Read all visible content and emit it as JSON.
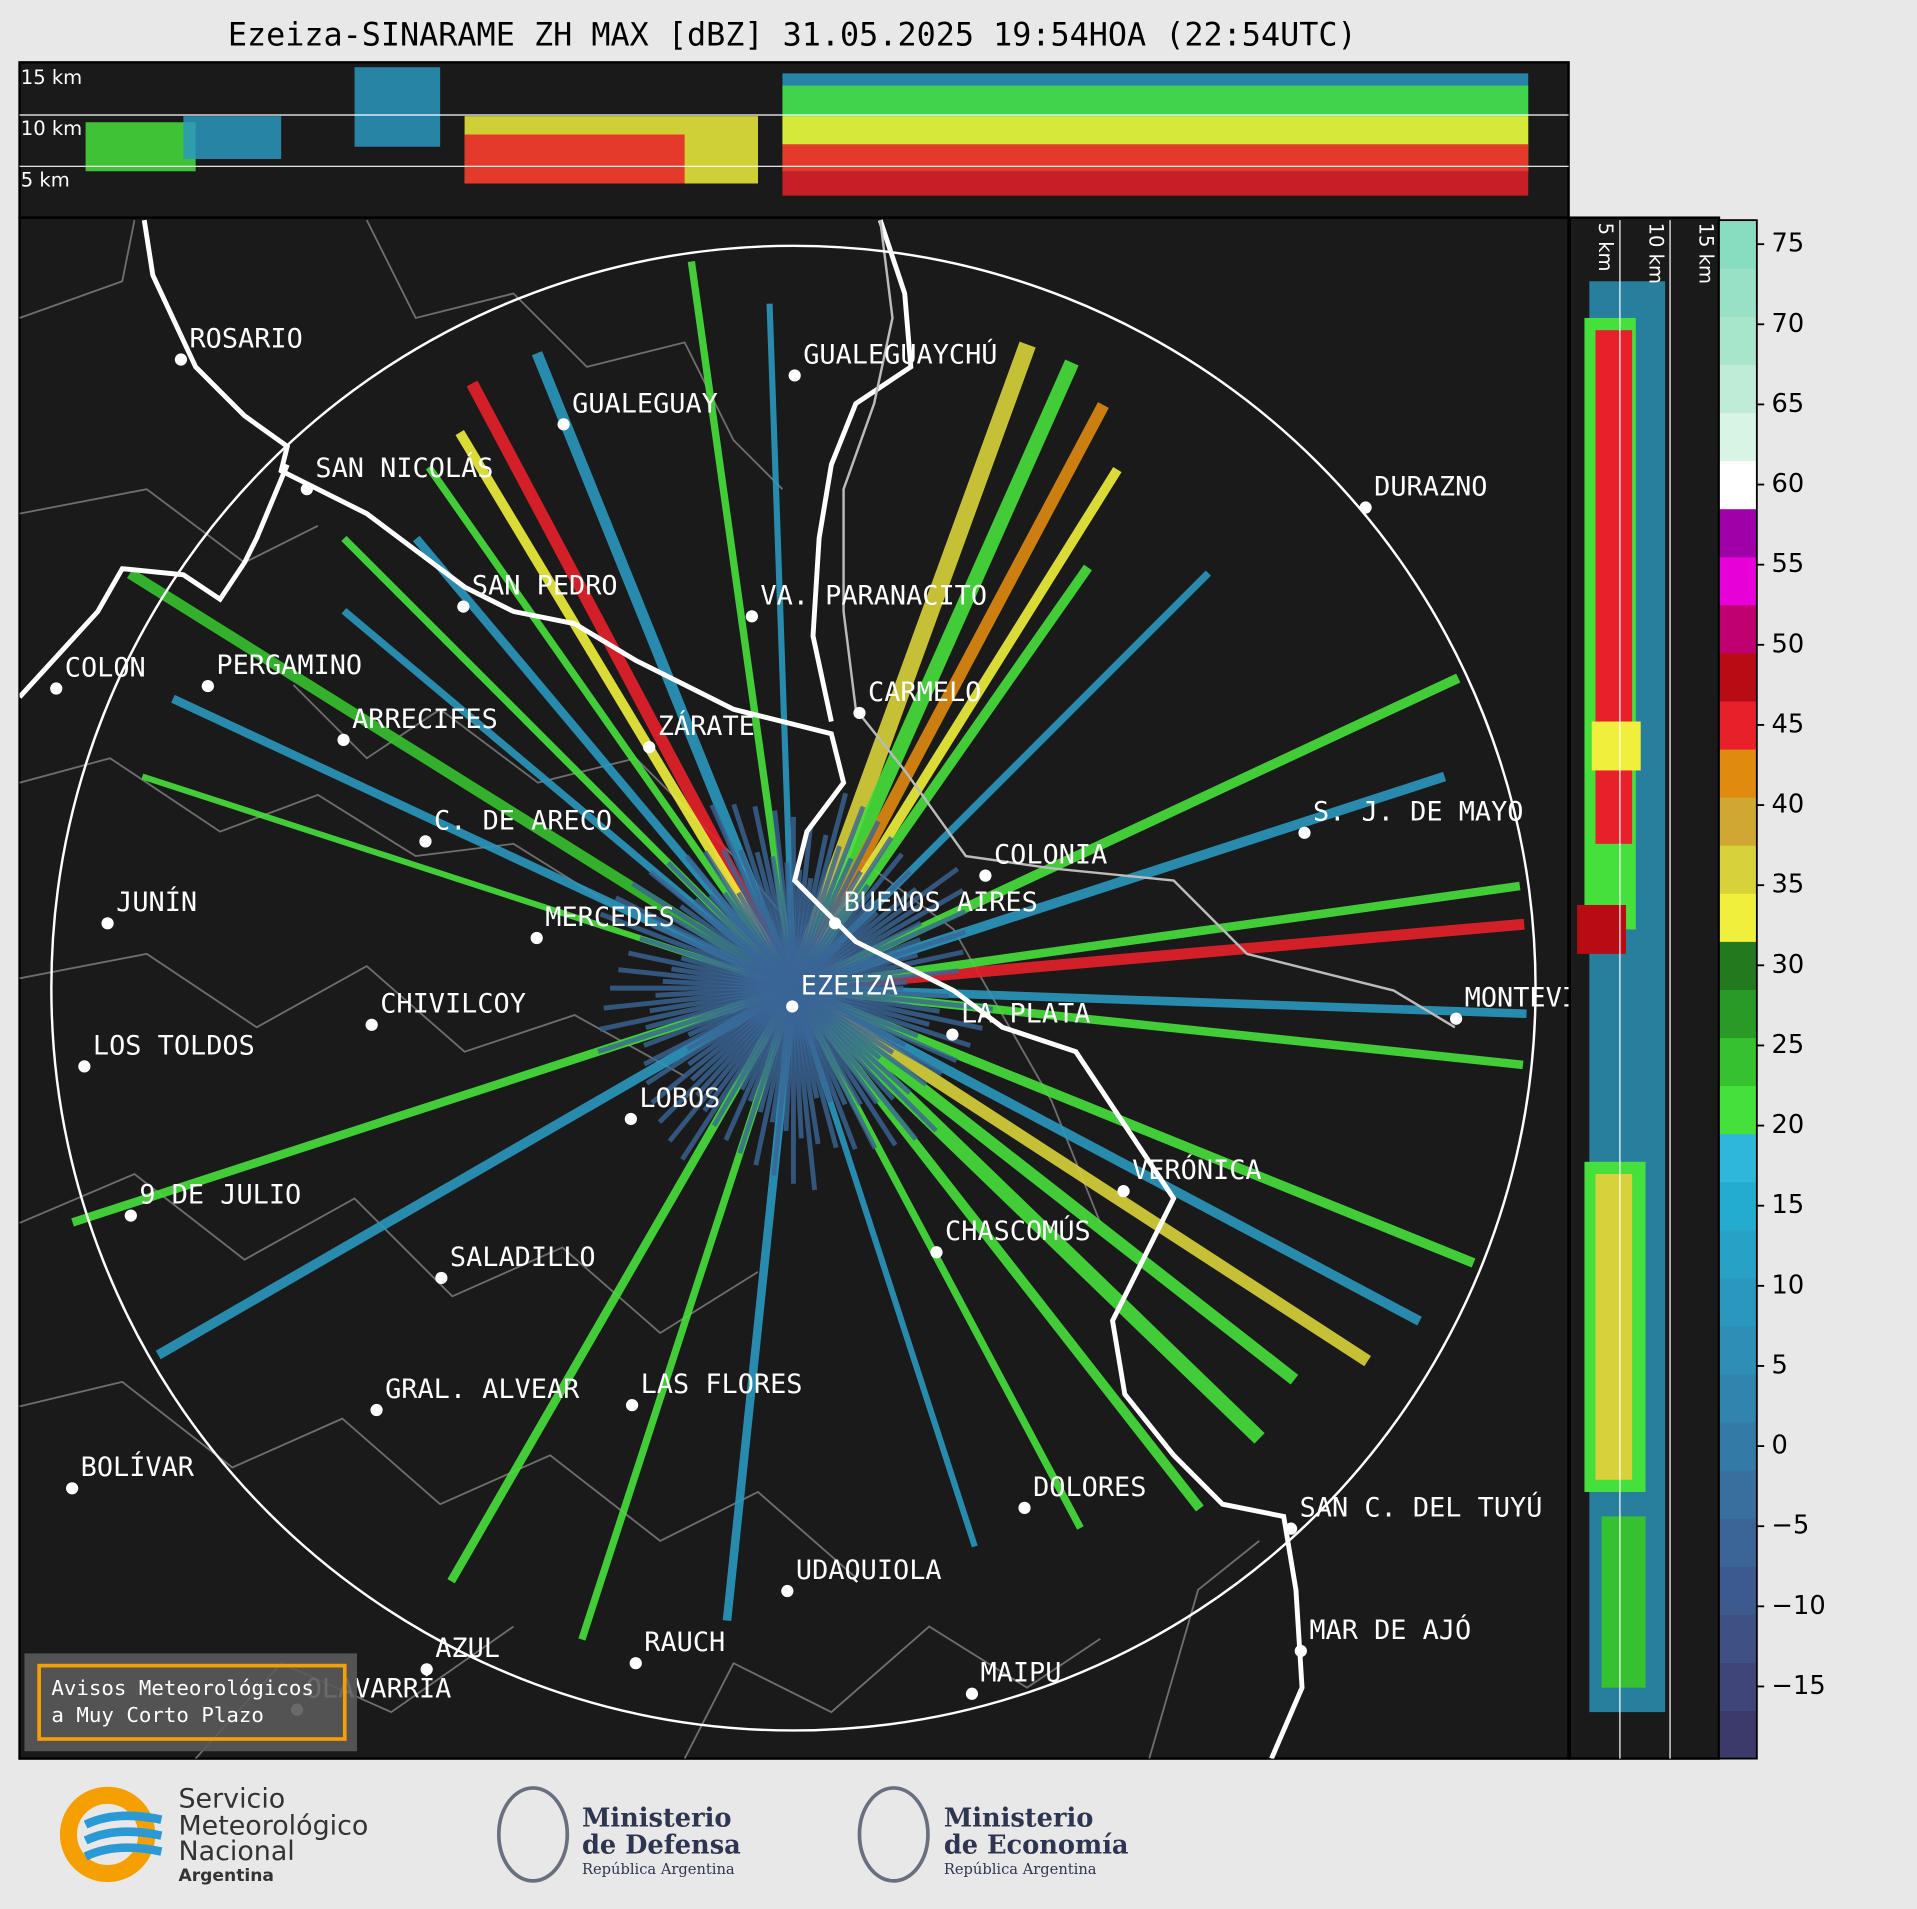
{
  "title": "Ezeiza-SINARAME ZH MAX [dBZ] 31.05.2025 19:54HOA (22:54UTC)",
  "top_panel": {
    "height_labels": [
      "15 km",
      "10 km",
      "5 km"
    ]
  },
  "right_panel": {
    "height_labels": [
      "5 km",
      "10 km",
      "15 km"
    ]
  },
  "cities": [
    "ROSARIO",
    "GUALEGUAYCHÚ",
    "GUALEGUAY",
    "SAN NICOLÁS",
    "DURAZNO",
    "SAN PEDRO",
    "VA. PARANACITO",
    "COLON",
    "PERGAMINO",
    "CARMELO",
    "ARRECIFES",
    "ZÁRATE",
    "S. J. DE MAYO",
    "C. DE ARECO",
    "COLONIA",
    "JUNÍN",
    "BUENOS AIRES",
    "MERCEDES",
    "EZEIZA",
    "MONTEVIDEO",
    "CHIVILCOY",
    "LA PLATA",
    "LOS TOLDOS",
    "LOBOS",
    "VERÓNICA",
    "9 DE JULIO",
    "CHASCOMÚS",
    "SALADILLO",
    "GRAL. ALVEAR",
    "LAS FLORES",
    "BOLÍVAR",
    "DOLORES",
    "SAN C. DEL TUYÚ",
    "UDAQUIOLA",
    "MAR DE AJÓ",
    "AZUL",
    "RAUCH",
    "OLAVARRÍA",
    "MAIPU"
  ],
  "colorbar": {
    "lim": [
      -19.5,
      76.5
    ],
    "ticks": [
      75,
      70,
      65,
      60,
      55,
      50,
      45,
      40,
      35,
      30,
      25,
      20,
      15,
      10,
      5,
      0,
      {
        "value": -5,
        "label": "−5"
      },
      {
        "value": -10,
        "label": "−10"
      },
      {
        "value": -15,
        "label": "−15"
      }
    ],
    "colors": [
      "#3b3a6b",
      "#3f4578",
      "#3f5085",
      "#3d5a8e",
      "#3a6596",
      "#37709e",
      "#347aa6",
      "#3184ae",
      "#2e8eb6",
      "#2a98be",
      "#27a2c6",
      "#24acce",
      "#2eb7d8",
      "#46e03c",
      "#36c12f",
      "#2a9a26",
      "#237a1e",
      "#f0f03c",
      "#d8d23a",
      "#cfa732",
      "#e08a10",
      "#e8202a",
      "#b80c14",
      "#c00070",
      "#e800d8",
      "#a000a8",
      "#ffffff",
      "#d8f4e4",
      "#bfecd6",
      "#a8e6cc",
      "#98e0c6",
      "#88dcc0"
    ]
  },
  "notice": [
    "Avisos Meteorológicos",
    "a Muy Corto Plazo"
  ],
  "logos": {
    "smn": [
      "Servicio",
      "Meteorológico",
      "Nacional",
      "Argentina"
    ],
    "defensa": [
      "Ministerio",
      "de Defensa",
      "República Argentina"
    ],
    "economia": [
      "Ministerio",
      "de Economía",
      "República Argentina"
    ]
  }
}
